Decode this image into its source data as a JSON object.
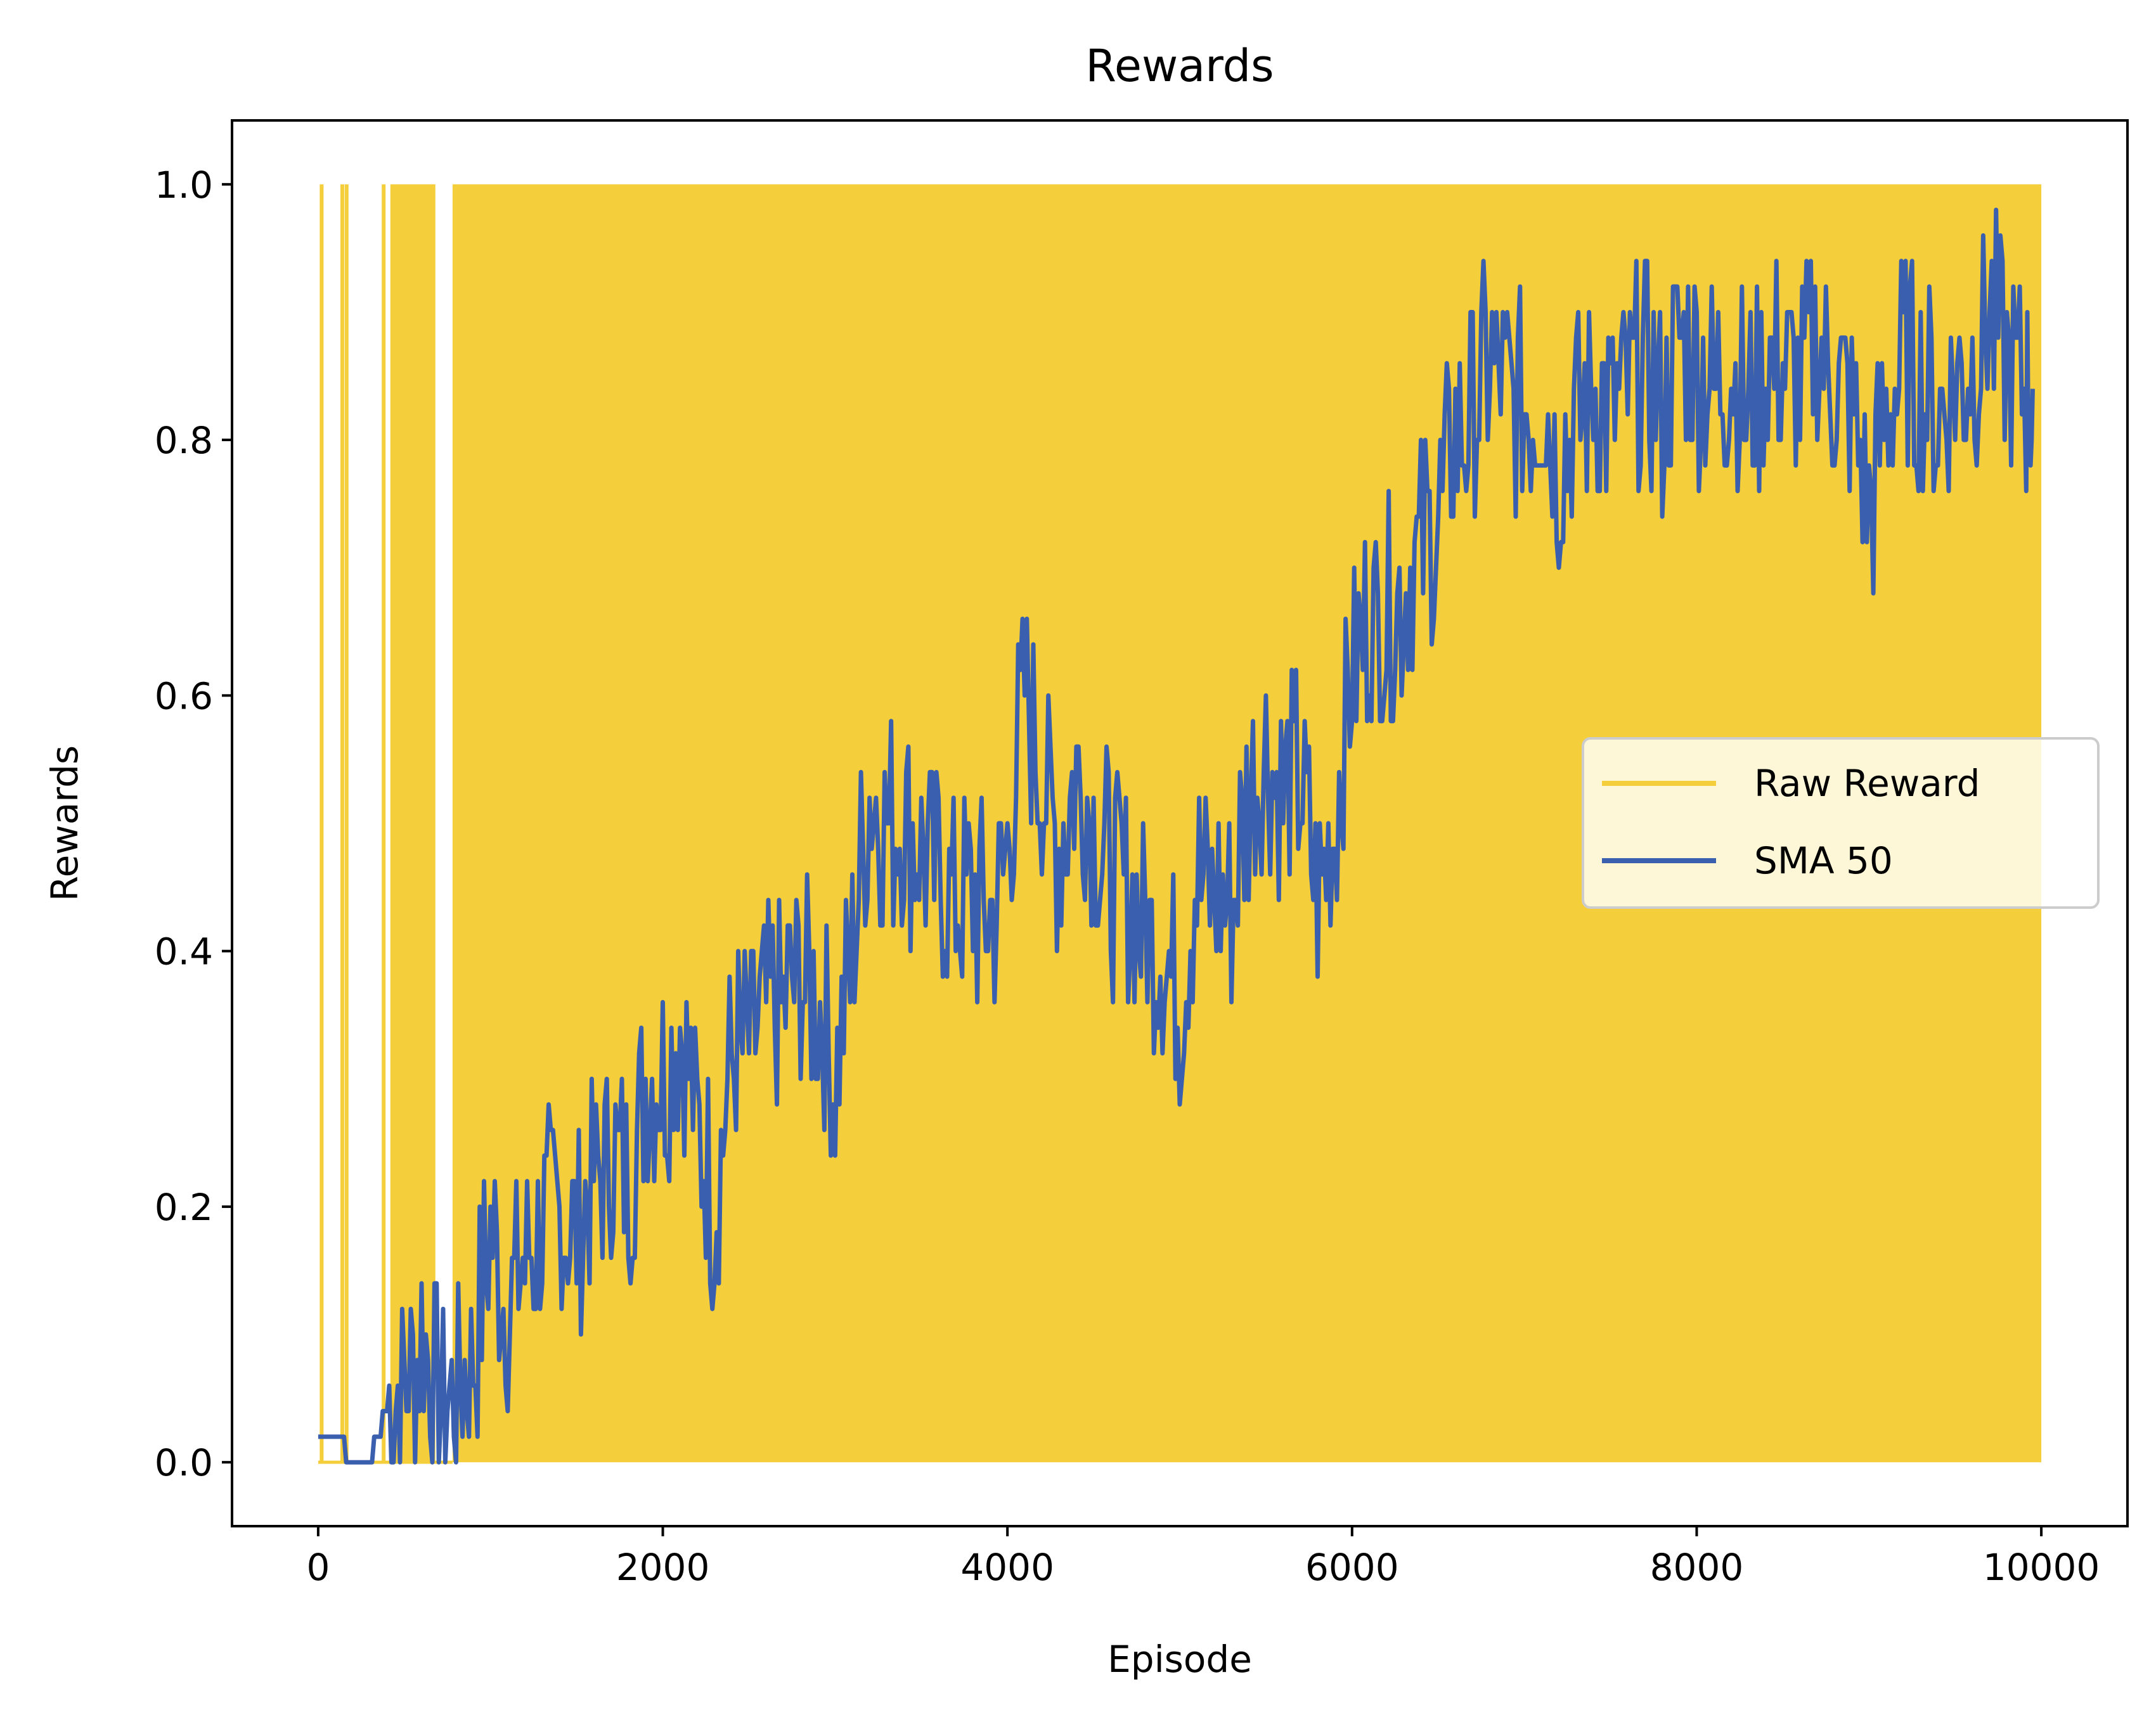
{
  "chart_data": {
    "type": "line",
    "title": "Rewards",
    "xlabel": "Episode",
    "ylabel": "Rewards",
    "xlim": [
      -500,
      10500
    ],
    "ylim": [
      -0.05,
      1.05
    ],
    "x_ticks": [
      0,
      2000,
      4000,
      6000,
      8000,
      10000
    ],
    "x_tick_labels": [
      "0",
      "2000",
      "4000",
      "6000",
      "8000",
      "10000"
    ],
    "y_ticks": [
      0.0,
      0.2,
      0.4,
      0.6,
      0.8,
      1.0
    ],
    "y_tick_labels": [
      "0.0",
      "0.2",
      "0.4",
      "0.6",
      "0.8",
      "1.0"
    ],
    "grid": false,
    "legend_position": "center-right",
    "series": [
      {
        "name": "Raw Reward",
        "color": "#F5CF3B",
        "style": "binary-band",
        "x_range": [
          0,
          10000
        ],
        "value_range": [
          0,
          1
        ],
        "early_success_spikes_x": [
          20,
          140,
          165,
          380,
          430
        ],
        "dense_success_from_x": 780
      },
      {
        "name": "SMA 50",
        "color": "#3A5FAE",
        "x": [
          0,
          100,
          200,
          300,
          400,
          500,
          600,
          700,
          800,
          900,
          1000,
          1100,
          1200,
          1300,
          1400,
          1500,
          1600,
          1700,
          1800,
          1900,
          2000,
          2100,
          2200,
          2300,
          2400,
          2500,
          2600,
          2700,
          2800,
          2900,
          3000,
          3100,
          3200,
          3300,
          3400,
          3500,
          3600,
          3700,
          3800,
          3900,
          4000,
          4100,
          4200,
          4300,
          4400,
          4500,
          4600,
          4700,
          4800,
          4900,
          5000,
          5100,
          5200,
          5300,
          5400,
          5500,
          5600,
          5700,
          5800,
          5900,
          6000,
          6100,
          6200,
          6300,
          6400,
          6500,
          6600,
          6700,
          6800,
          6900,
          7000,
          7100,
          7200,
          7300,
          7400,
          7500,
          7600,
          7700,
          7800,
          7900,
          8000,
          8100,
          8200,
          8300,
          8400,
          8500,
          8600,
          8700,
          8800,
          8900,
          9000,
          9100,
          9200,
          9300,
          9400,
          9500,
          9600,
          9700,
          9800,
          9900,
          9950
        ],
        "values": [
          0.02,
          0.02,
          0.0,
          0.0,
          0.04,
          0.06,
          0.1,
          0.04,
          0.06,
          0.08,
          0.18,
          0.12,
          0.16,
          0.18,
          0.2,
          0.18,
          0.22,
          0.24,
          0.22,
          0.3,
          0.3,
          0.34,
          0.26,
          0.2,
          0.32,
          0.32,
          0.36,
          0.36,
          0.38,
          0.36,
          0.3,
          0.4,
          0.52,
          0.5,
          0.5,
          0.48,
          0.46,
          0.44,
          0.44,
          0.42,
          0.48,
          0.6,
          0.54,
          0.48,
          0.54,
          0.5,
          0.46,
          0.44,
          0.42,
          0.4,
          0.36,
          0.46,
          0.44,
          0.44,
          0.52,
          0.56,
          0.52,
          0.54,
          0.44,
          0.5,
          0.62,
          0.66,
          0.66,
          0.68,
          0.72,
          0.74,
          0.8,
          0.82,
          0.86,
          0.84,
          0.82,
          0.84,
          0.78,
          0.82,
          0.84,
          0.82,
          0.84,
          0.86,
          0.82,
          0.88,
          0.86,
          0.84,
          0.86,
          0.82,
          0.86,
          0.86,
          0.84,
          0.88,
          0.84,
          0.82,
          0.74,
          0.82,
          0.86,
          0.84,
          0.82,
          0.84,
          0.86,
          0.9,
          0.86,
          0.84,
          0.84
        ]
      }
    ]
  }
}
